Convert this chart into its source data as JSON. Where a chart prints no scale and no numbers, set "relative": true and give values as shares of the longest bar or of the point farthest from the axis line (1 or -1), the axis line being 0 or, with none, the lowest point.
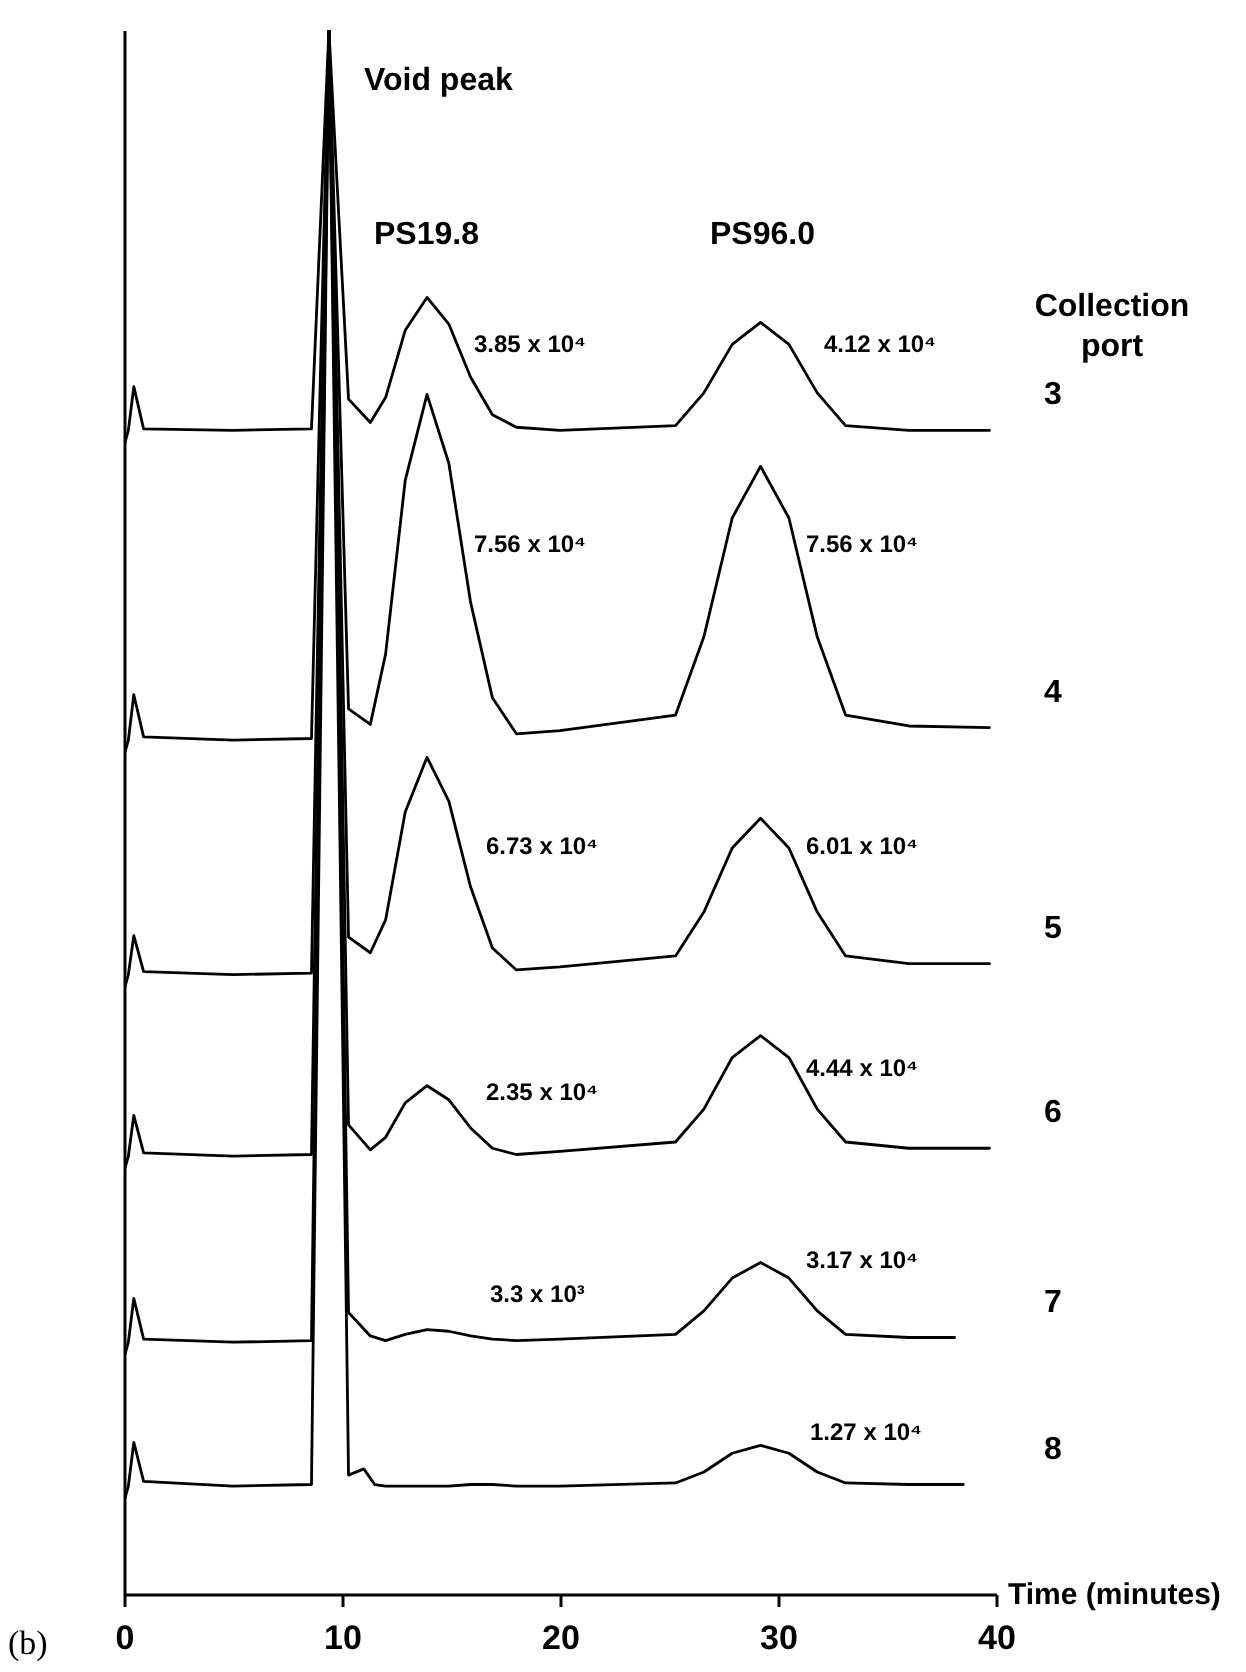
{
  "chart_data": {
    "type": "line",
    "relative": true,
    "xlabel": "Time (minutes)",
    "legend_title": "Collection port",
    "xlim": [
      0,
      40
    ],
    "xticks": [
      0,
      10,
      20,
      30,
      40
    ],
    "series": [
      {
        "name": "3",
        "color": "#000000",
        "x": [
          0,
          0.2,
          0.45,
          0.9,
          5,
          8.6,
          9.4,
          10.3,
          11.3,
          12.0,
          12.9,
          13.9,
          14.9,
          15.9,
          16.9,
          18,
          20,
          25.3,
          26.6,
          27.9,
          29.2,
          30.5,
          31.8,
          33.1,
          36,
          39.7
        ],
        "values": [
          0.734,
          0.744,
          0.772,
          0.745,
          0.744,
          0.745,
          1,
          0.764,
          0.749,
          0.765,
          0.808,
          0.829,
          0.812,
          0.778,
          0.754,
          0.746,
          0.744,
          0.747,
          0.768,
          0.799,
          0.813,
          0.799,
          0.768,
          0.747,
          0.744,
          0.744
        ]
      },
      {
        "name": "4",
        "color": "#000000",
        "x": [
          0,
          0.2,
          0.45,
          0.9,
          5,
          8.6,
          9.4,
          10.3,
          11.3,
          12.0,
          12.9,
          13.9,
          14.9,
          15.9,
          16.9,
          18,
          20,
          25.3,
          26.6,
          27.9,
          29.2,
          30.5,
          31.8,
          33.1,
          36,
          39.7
        ],
        "values": [
          0.536,
          0.546,
          0.575,
          0.548,
          0.546,
          0.547,
          1,
          0.566,
          0.556,
          0.601,
          0.712,
          0.767,
          0.723,
          0.634,
          0.573,
          0.55,
          0.552,
          0.562,
          0.612,
          0.688,
          0.721,
          0.688,
          0.612,
          0.562,
          0.555,
          0.554
        ]
      },
      {
        "name": "5",
        "color": "#000000",
        "x": [
          0,
          0.2,
          0.45,
          0.9,
          5,
          8.6,
          9.4,
          10.3,
          11.3,
          12.0,
          12.9,
          13.9,
          14.9,
          15.9,
          16.9,
          18,
          20,
          25.3,
          26.6,
          27.9,
          29.2,
          30.5,
          31.8,
          33.1,
          36,
          39.7
        ],
        "values": [
          0.386,
          0.396,
          0.421,
          0.398,
          0.396,
          0.397,
          1,
          0.42,
          0.41,
          0.431,
          0.5,
          0.535,
          0.507,
          0.452,
          0.413,
          0.399,
          0.401,
          0.408,
          0.436,
          0.477,
          0.496,
          0.477,
          0.436,
          0.408,
          0.403,
          0.403
        ]
      },
      {
        "name": "6",
        "color": "#000000",
        "x": [
          0,
          0.2,
          0.45,
          0.9,
          5,
          8.6,
          9.4,
          10.3,
          11.3,
          12.0,
          12.9,
          13.9,
          14.9,
          15.9,
          16.9,
          18,
          20,
          25.3,
          26.6,
          27.9,
          29.2,
          30.5,
          31.8,
          33.1,
          36,
          39.7
        ],
        "values": [
          0.27,
          0.28,
          0.306,
          0.282,
          0.28,
          0.281,
          1,
          0.3,
          0.284,
          0.292,
          0.314,
          0.325,
          0.316,
          0.298,
          0.285,
          0.281,
          0.283,
          0.289,
          0.31,
          0.343,
          0.357,
          0.343,
          0.31,
          0.289,
          0.285,
          0.285
        ]
      },
      {
        "name": "7",
        "color": "#000000",
        "x": [
          0,
          0.2,
          0.45,
          0.9,
          5,
          8.6,
          9.4,
          10.3,
          11.3,
          12.0,
          12.9,
          13.9,
          14.9,
          15.9,
          16.9,
          18,
          20,
          25.3,
          26.6,
          27.9,
          29.2,
          30.5,
          31.8,
          33.1,
          36,
          38.1
        ],
        "values": [
          0.151,
          0.161,
          0.189,
          0.163,
          0.161,
          0.162,
          1,
          0.18,
          0.165,
          0.162,
          0.166,
          0.169,
          0.168,
          0.165,
          0.163,
          0.162,
          0.163,
          0.166,
          0.181,
          0.202,
          0.212,
          0.202,
          0.181,
          0.166,
          0.164,
          0.164
        ]
      },
      {
        "name": "8",
        "color": "#000000",
        "x": [
          0,
          0.2,
          0.45,
          0.9,
          5,
          8.6,
          9.4,
          10.3,
          11.0,
          11.5,
          12.0,
          12.9,
          13.9,
          14.9,
          15.9,
          16.9,
          18,
          20,
          25.3,
          26.6,
          27.9,
          29.2,
          30.5,
          31.8,
          33.1,
          36,
          38.5
        ],
        "values": [
          0.059,
          0.069,
          0.097,
          0.072,
          0.069,
          0.07,
          1,
          0.076,
          0.08,
          0.07,
          0.069,
          0.069,
          0.069,
          0.069,
          0.07,
          0.07,
          0.069,
          0.069,
          0.071,
          0.078,
          0.09,
          0.095,
          0.09,
          0.078,
          0.071,
          0.07,
          0.07
        ]
      }
    ],
    "annotations": [
      "Void peak",
      "PS19.8",
      "PS96.0",
      "3.85 x 10⁴",
      "4.12 x 10⁴",
      "7.56 x 10⁴",
      "7.56 x 10⁴",
      "6.73 x 10⁴",
      "6.01 x 10⁴",
      "2.35 x 10⁴",
      "4.44 x 10⁴",
      "3.3 x 10³",
      "3.17 x 10⁴",
      "1.27 x 10⁴",
      "(b)"
    ]
  }
}
